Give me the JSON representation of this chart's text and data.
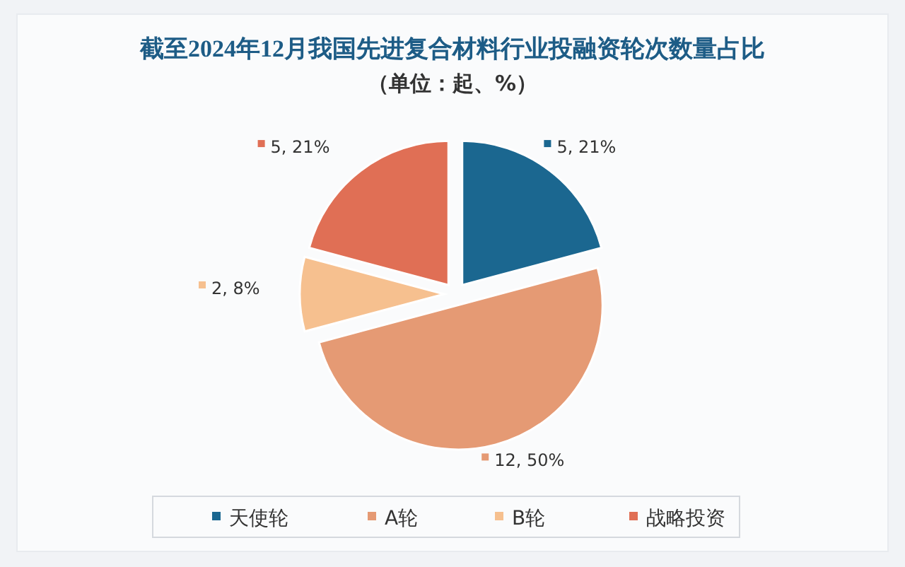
{
  "chart_data": {
    "type": "pie",
    "title": "截至2024年12月我国先进复合材料行业投融资轮次数量占比",
    "subtitle": "（单位：起、%）",
    "categories": [
      "天使轮",
      "A轮",
      "B轮",
      "战略投资"
    ],
    "values": [
      5,
      12,
      2,
      5
    ],
    "value_labels": [
      "5, 21%",
      "12, 50%",
      "2, 8%",
      "5, 21%"
    ],
    "colors": [
      "#1b6790",
      "#e59a74",
      "#f6c08f",
      "#e06f55"
    ],
    "legend": "bottom"
  }
}
